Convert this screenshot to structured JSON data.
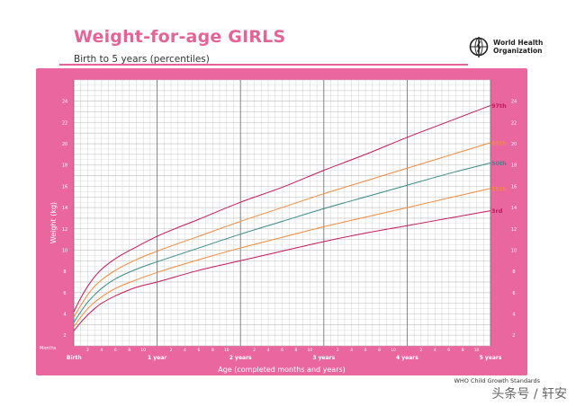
{
  "header": {
    "title": "Weight-for-age GIRLS",
    "subtitle": "Birth to 5 years (percentiles)",
    "org_line1": "World Health",
    "org_line2": "Organization"
  },
  "footer": {
    "standards": "WHO Child Growth Standards",
    "watermark": "头条号 / 轩安"
  },
  "colors": {
    "frame": "#e9669f",
    "title": "#e6639a",
    "grid": "#bbbbbb",
    "p97": "#c2185b",
    "p85": "#ef8a3c",
    "p50": "#3a8a8a",
    "p15": "#ef8a3c",
    "p3": "#c2185b"
  },
  "chart_data": {
    "type": "line",
    "title": "Weight-for-age GIRLS",
    "subtitle": "Birth to 5 years (percentiles)",
    "xlabel": "Age (completed months and years)",
    "ylabel": "Weight (kg)",
    "x_unit_label": "Months",
    "xlim": [
      0,
      60
    ],
    "ylim": [
      1,
      26
    ],
    "y_ticks": [
      2,
      4,
      6,
      8,
      10,
      12,
      14,
      16,
      18,
      20,
      22,
      24
    ],
    "y_ticks_left": [
      2,
      4,
      6,
      8,
      10,
      12,
      14,
      16,
      18,
      20,
      22,
      24
    ],
    "year_labels": [
      {
        "month": 0,
        "label": "Birth"
      },
      {
        "month": 12,
        "label": "1 year"
      },
      {
        "month": 24,
        "label": "2 years"
      },
      {
        "month": 36,
        "label": "3 years"
      },
      {
        "month": 48,
        "label": "4 years"
      },
      {
        "month": 60,
        "label": "5 years"
      }
    ],
    "month_tick_labels": [
      "2",
      "4",
      "6",
      "8",
      "10"
    ],
    "grid": true,
    "series": [
      {
        "name": "97th",
        "x": [
          0,
          1,
          2,
          3,
          4,
          6,
          9,
          12,
          18,
          24,
          30,
          36,
          42,
          48,
          54,
          60
        ],
        "y": [
          4.2,
          5.5,
          6.6,
          7.5,
          8.2,
          9.2,
          10.3,
          11.3,
          12.9,
          14.5,
          15.9,
          17.5,
          19.0,
          20.6,
          22.1,
          23.6
        ]
      },
      {
        "name": "85th",
        "x": [
          0,
          1,
          2,
          3,
          4,
          6,
          9,
          12,
          18,
          24,
          30,
          36,
          42,
          48,
          54,
          60
        ],
        "y": [
          3.7,
          4.8,
          5.8,
          6.6,
          7.2,
          8.1,
          9.1,
          9.9,
          11.3,
          12.7,
          14.0,
          15.3,
          16.5,
          17.7,
          18.9,
          20.1
        ]
      },
      {
        "name": "50th",
        "x": [
          0,
          1,
          2,
          3,
          4,
          6,
          9,
          12,
          18,
          24,
          30,
          36,
          42,
          48,
          54,
          60
        ],
        "y": [
          3.2,
          4.2,
          5.1,
          5.8,
          6.4,
          7.3,
          8.2,
          8.9,
          10.2,
          11.5,
          12.7,
          13.9,
          15.0,
          16.1,
          17.2,
          18.2
        ]
      },
      {
        "name": "15th",
        "x": [
          0,
          1,
          2,
          3,
          4,
          6,
          9,
          12,
          18,
          24,
          30,
          36,
          42,
          48,
          54,
          60
        ],
        "y": [
          2.8,
          3.7,
          4.5,
          5.1,
          5.6,
          6.4,
          7.2,
          7.9,
          9.1,
          10.2,
          11.2,
          12.2,
          13.1,
          14.0,
          14.9,
          15.8
        ]
      },
      {
        "name": "3rd",
        "x": [
          0,
          1,
          2,
          3,
          4,
          6,
          9,
          12,
          18,
          24,
          30,
          36,
          42,
          48,
          54,
          60
        ],
        "y": [
          2.4,
          3.2,
          3.9,
          4.5,
          5.0,
          5.7,
          6.5,
          7.0,
          8.1,
          9.0,
          9.9,
          10.8,
          11.6,
          12.3,
          13.0,
          13.7
        ]
      }
    ]
  }
}
